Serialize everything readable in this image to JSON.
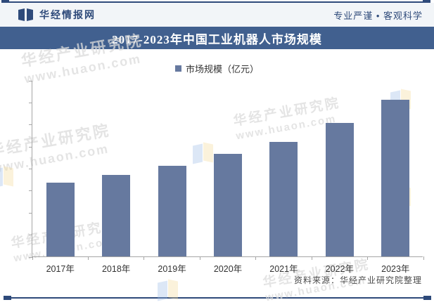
{
  "header": {
    "brand": "华经情报网",
    "slogan": "专业严谨 • 客观科学"
  },
  "title": "2017-2023年中国工业机器人市场规模",
  "legend": "市场规模（亿元）",
  "source": "资料来源：华经产业研究院整理",
  "watermark": {
    "line1": "华经产业研究院",
    "line2": "www.huaon.com"
  },
  "colors": {
    "bar": "#66799F",
    "title_band": "#41608F",
    "brand_text": "#2E4A7A",
    "accent_rule": "#2E4A7A"
  },
  "chart_data": {
    "type": "bar",
    "categories": [
      "2017年",
      "2018年",
      "2019年",
      "2020年",
      "2021年",
      "2022年",
      "2023年"
    ],
    "values": [
      335,
      370,
      412,
      465,
      520,
      606,
      710
    ],
    "series_name": "市场规模（亿元）",
    "title": "2017-2023年中国工业机器人市场规模",
    "xlabel": "",
    "ylabel": "",
    "ylim": [
      0,
      800
    ],
    "yticks": [
      0,
      100,
      200,
      300,
      400,
      500,
      600,
      700,
      800
    ],
    "legend_position": "top-center",
    "grid": false
  }
}
